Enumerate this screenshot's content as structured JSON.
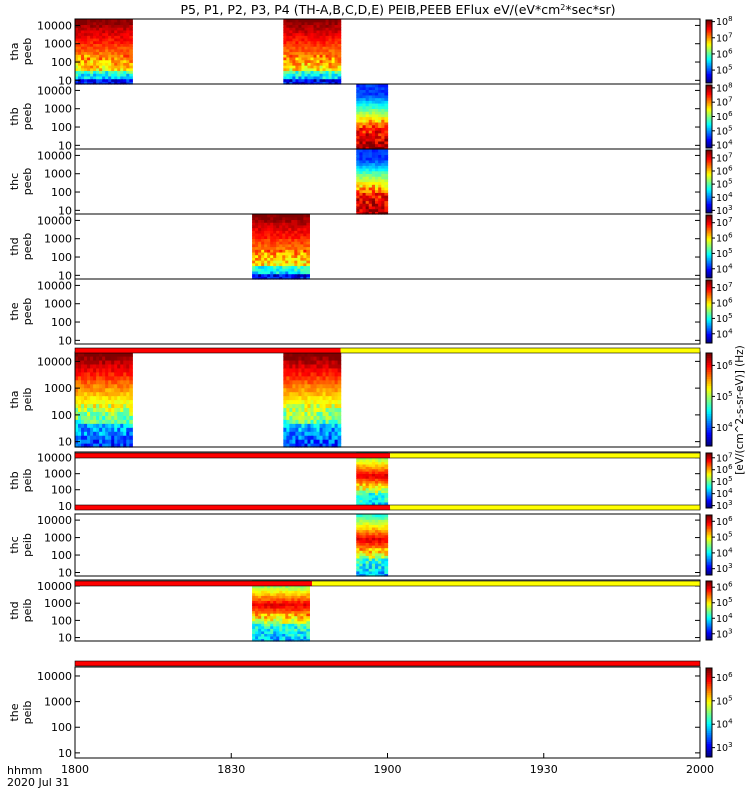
{
  "chart_data": {
    "type": "heatmap",
    "title": "P5, P1, P2, P3, P4 (TH-A,B,C,D,E) PEIB,PEEB EFlux eV/(eV*cm^2*sec*sr)",
    "title_parts": {
      "before_super": "P5, P1, P2, P3, P4 (TH-A,B,C,D,E) PEIB,PEEB EFlux eV/(eV*cm",
      "superscript": "2",
      "after_super": "*sec*sr)"
    },
    "x_range": [
      0,
      120
    ],
    "x_ticks": [
      {
        "value": 0,
        "label": "1800"
      },
      {
        "value": 30,
        "label": "1830"
      },
      {
        "value": 60,
        "label": "1900"
      },
      {
        "value": 90,
        "label": "1930"
      },
      {
        "value": 120,
        "label": "2000"
      }
    ],
    "x_label_lines": [
      "hhmm",
      "2020 Jul 31"
    ],
    "y_ticks": [
      10,
      100,
      1000,
      10000
    ],
    "y_tick_labels": [
      "10",
      "100",
      "1000",
      "10000"
    ],
    "y_range_log10": [
      0.8,
      4.35
    ],
    "colorbar_label": "[eV/(cm^2-s-sr-eV)] (Hz)",
    "panels": [
      {
        "ylabel": [
          "tha",
          "peeb"
        ],
        "cb_labels": [
          "10^5",
          "10^6",
          "10^7",
          "10^8"
        ],
        "cb_bottom_exp": 4.2,
        "cb_top_exp": 8.1,
        "bursts": [
          {
            "start": 0,
            "end": 11,
            "style": "e"
          },
          {
            "start": 40,
            "end": 51,
            "style": "e"
          }
        ],
        "status_bar": null
      },
      {
        "ylabel": [
          "thb",
          "peeb"
        ],
        "cb_labels": [
          "10^4",
          "10^5",
          "10^6",
          "10^7",
          "10^8"
        ],
        "cb_bottom_exp": 3.8,
        "cb_top_exp": 8.2,
        "bursts": [
          {
            "start": 54,
            "end": 60,
            "style": "e2"
          }
        ],
        "status_bar": null
      },
      {
        "ylabel": [
          "thc",
          "peeb"
        ],
        "cb_labels": [
          "10^3",
          "10^4",
          "10^5",
          "10^6",
          "10^7"
        ],
        "cb_bottom_exp": 2.8,
        "cb_top_exp": 7.6,
        "bursts": [
          {
            "start": 54,
            "end": 60,
            "style": "e2"
          }
        ],
        "status_bar": null
      },
      {
        "ylabel": [
          "thd",
          "peeb"
        ],
        "cb_labels": [
          "10^4",
          "10^5",
          "10^6",
          "10^7"
        ],
        "cb_bottom_exp": 3.4,
        "cb_top_exp": 7.5,
        "bursts": [
          {
            "start": 34,
            "end": 45,
            "style": "e"
          }
        ],
        "status_bar": null
      },
      {
        "ylabel": [
          "the",
          "peeb"
        ],
        "cb_labels": [
          "10^4",
          "10^5",
          "10^6",
          "10^7"
        ],
        "cb_bottom_exp": 3.4,
        "cb_top_exp": 7.5,
        "bursts": [],
        "status_bar": null
      },
      {
        "ylabel": [
          "tha",
          "peib"
        ],
        "cb_labels": [
          "10^4",
          "10^5",
          "10^6"
        ],
        "cb_bottom_exp": 3.4,
        "cb_top_exp": 6.4,
        "bursts": [
          {
            "start": 0,
            "end": 11,
            "style": "i"
          },
          {
            "start": 40,
            "end": 51,
            "style": "i"
          }
        ],
        "status_bar": {
          "red_until": 51
        }
      },
      {
        "ylabel": [
          "thb",
          "peib"
        ],
        "cb_labels": [
          "10^3",
          "10^4",
          "10^5",
          "10^6",
          "10^7"
        ],
        "cb_bottom_exp": 2.8,
        "cb_top_exp": 7.4,
        "bursts": [
          {
            "start": 54,
            "end": 60,
            "style": "i2"
          }
        ],
        "status_bar": {
          "red_until": 60.5
        }
      },
      {
        "ylabel": [
          "thc",
          "peib"
        ],
        "cb_labels": [
          "10^3",
          "10^4",
          "10^5",
          "10^6"
        ],
        "cb_bottom_exp": 2.6,
        "cb_top_exp": 6.4,
        "bursts": [
          {
            "start": 54,
            "end": 60,
            "style": "i2"
          }
        ],
        "status_bar": {
          "red_until": 60.5
        }
      },
      {
        "ylabel": [
          "thd",
          "peib"
        ],
        "cb_labels": [
          "10^3",
          "10^4",
          "10^5",
          "10^6"
        ],
        "cb_bottom_exp": 2.6,
        "cb_top_exp": 6.4,
        "bursts": [
          {
            "start": 34,
            "end": 45,
            "style": "i2"
          }
        ],
        "status_bar": {
          "red_until": 45.5
        }
      },
      {
        "ylabel": [
          "the",
          "peib"
        ],
        "cb_labels": [
          "10^3",
          "10^4",
          "10^5",
          "10^6"
        ],
        "cb_bottom_exp": 2.6,
        "cb_top_exp": 6.4,
        "bursts": [],
        "status_bar": {
          "red_until": 120
        }
      }
    ]
  }
}
